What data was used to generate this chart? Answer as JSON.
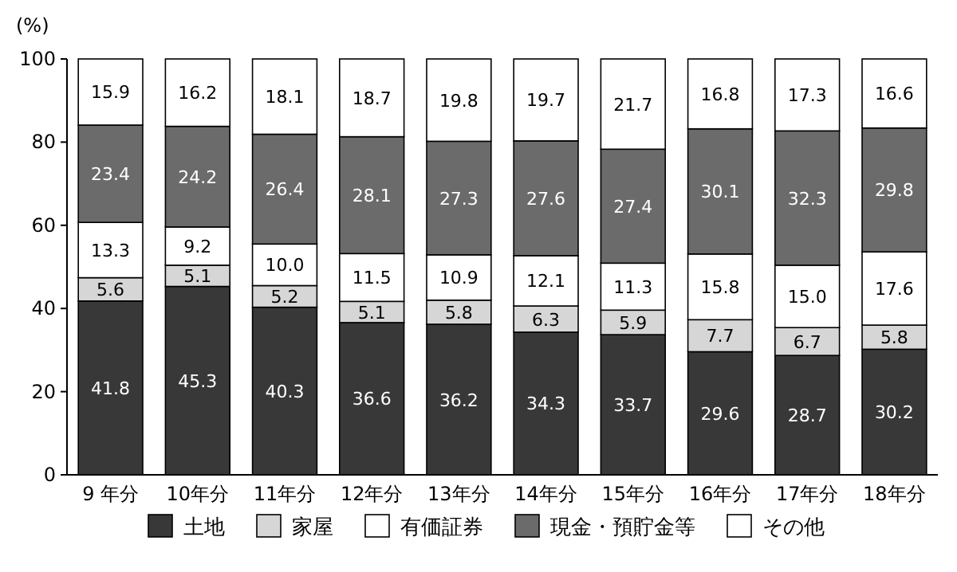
{
  "chart_data": {
    "type": "bar",
    "stacked": true,
    "data_labels": true,
    "legend": "bottom",
    "ylabel": "(%)",
    "ylim": [
      0,
      100
    ],
    "yticks": [
      0,
      20,
      40,
      60,
      80,
      100
    ],
    "categories": [
      "9 年分",
      "10年分",
      "11年分",
      "12年分",
      "13年分",
      "14年分",
      "15年分",
      "16年分",
      "17年分",
      "18年分"
    ],
    "series": [
      {
        "name": "土地",
        "color": "#383838",
        "values": [
          41.8,
          45.3,
          40.3,
          36.6,
          36.2,
          34.3,
          33.7,
          29.6,
          28.7,
          30.2
        ]
      },
      {
        "name": "家屋",
        "color": "#d6d6d6",
        "values": [
          5.6,
          5.1,
          5.2,
          5.1,
          5.8,
          6.3,
          5.9,
          7.7,
          6.7,
          5.8
        ]
      },
      {
        "name": "有価証券",
        "color": "#ffffff",
        "values": [
          13.3,
          9.2,
          10.0,
          11.5,
          10.9,
          12.1,
          11.3,
          15.8,
          15.0,
          17.6
        ],
        "value_labels": [
          "13.3",
          "9.2",
          "10.0",
          "11.5",
          "10.9",
          "12.1",
          "11.3",
          "15.8",
          "15.0",
          "17.6"
        ]
      },
      {
        "name": "現金・預貯金等",
        "color": "#6b6b6b",
        "values": [
          23.4,
          24.2,
          26.4,
          28.1,
          27.3,
          27.6,
          27.4,
          30.1,
          32.3,
          29.8
        ]
      },
      {
        "name": "その他",
        "color": "#ffffff",
        "values": [
          15.9,
          16.2,
          18.1,
          18.7,
          19.8,
          19.7,
          21.7,
          16.8,
          17.3,
          16.6
        ]
      }
    ]
  }
}
